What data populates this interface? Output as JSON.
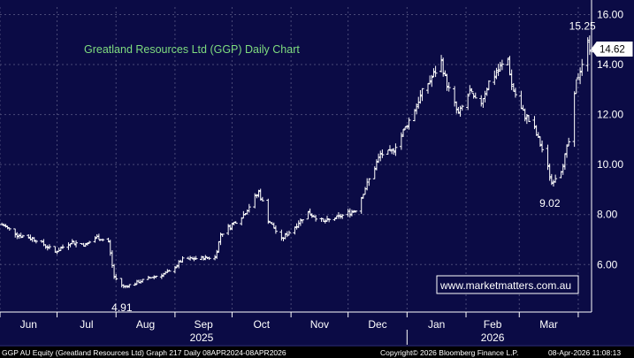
{
  "chart_data": {
    "type": "ohlc",
    "title": "Greatland Resources Ltd (GGP) Daily Chart",
    "watermark": "www.marketmatters.com.au",
    "y_ticks": [
      6,
      8,
      10,
      12,
      14,
      16
    ],
    "y_tick_labels": [
      "6.00",
      "8.00",
      "10.00",
      "12.00",
      "14.00",
      "16.00"
    ],
    "ylim": [
      4.1,
      16.3
    ],
    "x_month_labels": [
      "Jun",
      "Jul",
      "Aug",
      "Sep",
      "Oct",
      "Nov",
      "Dec",
      "Jan",
      "Feb",
      "Mar"
    ],
    "x_year_labels": [
      "2025",
      "2026"
    ],
    "x_start": "2025-06-01",
    "x_end": "2026-04-08",
    "last_price": 14.62,
    "last_price_label": "14.62",
    "annotations": [
      {
        "text": "15.25",
        "date": "2026-04-06",
        "value": 15.25
      },
      {
        "text": "4.91",
        "date": "2025-08-05",
        "value": 4.91
      },
      {
        "text": "9.02",
        "date": "2026-03-18",
        "value": 9.02
      }
    ],
    "ohlc_waypoints": [
      [
        "2025-06-02",
        7.6
      ],
      [
        "2025-06-10",
        7.2
      ],
      [
        "2025-06-20",
        7.0
      ],
      [
        "2025-06-30",
        6.5
      ],
      [
        "2025-07-08",
        6.9
      ],
      [
        "2025-07-16",
        6.8
      ],
      [
        "2025-07-22",
        7.1
      ],
      [
        "2025-07-28",
        6.9
      ],
      [
        "2025-07-31",
        5.5
      ],
      [
        "2025-08-05",
        5.1
      ],
      [
        "2025-08-20",
        5.5
      ],
      [
        "2025-08-29",
        5.7
      ],
      [
        "2025-09-05",
        6.2
      ],
      [
        "2025-09-22",
        6.3
      ],
      [
        "2025-09-25",
        7.2
      ],
      [
        "2025-10-01",
        7.6
      ],
      [
        "2025-10-07",
        8.0
      ],
      [
        "2025-10-15",
        8.9
      ],
      [
        "2025-10-17",
        8.5
      ],
      [
        "2025-10-20",
        7.8
      ],
      [
        "2025-10-27",
        7.0
      ],
      [
        "2025-11-04",
        7.6
      ],
      [
        "2025-11-10",
        8.1
      ],
      [
        "2025-11-18",
        7.7
      ],
      [
        "2025-11-26",
        7.9
      ],
      [
        "2025-12-05",
        8.2
      ],
      [
        "2025-12-12",
        9.4
      ],
      [
        "2025-12-18",
        10.4
      ],
      [
        "2025-12-24",
        10.5
      ],
      [
        "2026-01-01",
        11.6
      ],
      [
        "2026-01-09",
        12.9
      ],
      [
        "2026-01-15",
        13.6
      ],
      [
        "2026-01-19",
        14.1
      ],
      [
        "2026-01-22",
        13.2
      ],
      [
        "2026-01-28",
        12.0
      ],
      [
        "2026-02-03",
        12.9
      ],
      [
        "2026-02-08",
        12.3
      ],
      [
        "2026-02-13",
        13.3
      ],
      [
        "2026-02-18",
        13.8
      ],
      [
        "2026-02-23",
        14.2
      ],
      [
        "2026-02-25",
        13.2
      ],
      [
        "2026-03-02",
        12.2
      ],
      [
        "2026-03-09",
        11.4
      ],
      [
        "2026-03-14",
        10.4
      ],
      [
        "2026-03-18",
        9.3
      ],
      [
        "2026-03-23",
        9.8
      ],
      [
        "2026-03-27",
        10.9
      ],
      [
        "2026-03-31",
        13.3
      ],
      [
        "2026-04-06",
        14.8
      ],
      [
        "2026-04-08",
        14.62
      ]
    ]
  },
  "footer": {
    "left": "GGP AU Equity (Greatland Resources Ltd) Graph 217 Daily 08APR2024-08APR2026",
    "center": "Copyright© 2026 Bloomberg Finance L.P.",
    "right": "08-Apr-2026 11:08:13"
  },
  "colors": {
    "background": "#0b0b45",
    "grid": "#4a4a78",
    "bars": "#ffffff",
    "title": "#7fdc7f",
    "watermark_text": "#ffffff",
    "watermark_border": "#ffffff"
  }
}
